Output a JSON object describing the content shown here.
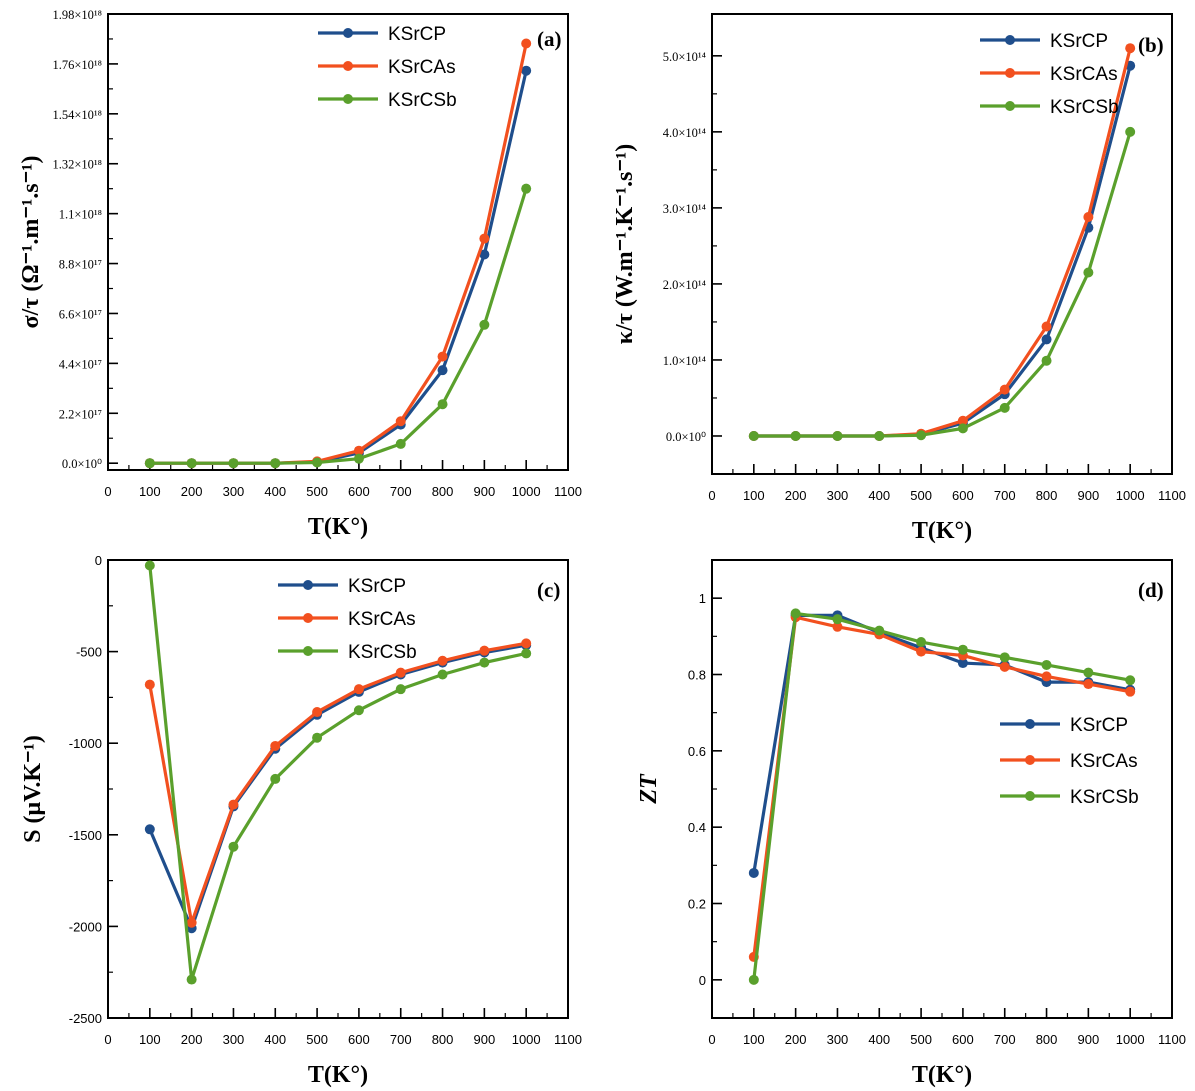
{
  "series_colors": {
    "KSrCP": "#1f4e8c",
    "KSrCAs": "#f2501f",
    "KSrCSb": "#5aa02c"
  },
  "chart_data": [
    {
      "type": "line",
      "panel": "(a)",
      "title": "",
      "xlabel": "T(K°)",
      "ylabel": "σ/τ (Ω⁻¹.m⁻¹.s⁻¹)",
      "xlim": [
        0,
        1100
      ],
      "ylim": [
        -3e+16,
        1.98e+18
      ],
      "x_ticks": [
        "0",
        "100",
        "200",
        "300",
        "400",
        "500",
        "600",
        "700",
        "800",
        "900",
        "1000",
        "1100"
      ],
      "y_ticks": [
        {
          "v": 0,
          "label": "0.0×10⁰"
        },
        {
          "v": 2.2e+17,
          "label": "2.2×10¹⁷"
        },
        {
          "v": 4.4e+17,
          "label": "4.4×10¹⁷"
        },
        {
          "v": 6.6e+17,
          "label": "6.6×10¹⁷"
        },
        {
          "v": 8.8e+17,
          "label": "8.8×10¹⁷"
        },
        {
          "v": 1.1e+18,
          "label": "1.1×10¹⁸"
        },
        {
          "v": 1.32e+18,
          "label": "1.32×10¹⁸"
        },
        {
          "v": 1.54e+18,
          "label": "1.54×10¹⁸"
        },
        {
          "v": 1.76e+18,
          "label": "1.76×10¹⁸"
        },
        {
          "v": 1.98e+18,
          "label": "1.98×10¹⁸"
        }
      ],
      "legend_position": "top-right",
      "x": [
        100,
        200,
        300,
        400,
        500,
        600,
        700,
        800,
        900,
        1000
      ],
      "series": [
        {
          "name": "KSrCP",
          "values": [
            0,
            0,
            0,
            0,
            5000000000000000.0,
            4.5e+16,
            1.7e+17,
            4.1e+17,
            9.2e+17,
            1.73e+18
          ]
        },
        {
          "name": "KSrCAs",
          "values": [
            0,
            0,
            0,
            0,
            8000000000000000.0,
            5.5e+16,
            1.85e+17,
            4.7e+17,
            9.9e+17,
            1.85e+18
          ]
        },
        {
          "name": "KSrCSb",
          "values": [
            0,
            0,
            0,
            0,
            3000000000000000.0,
            2e+16,
            8.5e+16,
            2.6e+17,
            6.1e+17,
            1.21e+18
          ]
        }
      ]
    },
    {
      "type": "line",
      "panel": "(b)",
      "title": "",
      "xlabel": "T(K°)",
      "ylabel": "κ/τ (W.m⁻¹.K⁻¹.s⁻¹)",
      "xlim": [
        0,
        1100
      ],
      "ylim": [
        -50000000000000.0,
        555000000000000.0
      ],
      "x_ticks": [
        "0",
        "100",
        "200",
        "300",
        "400",
        "500",
        "600",
        "700",
        "800",
        "900",
        "1000",
        "1100"
      ],
      "y_ticks": [
        {
          "v": 0,
          "label": "0.0×10⁰"
        },
        {
          "v": 100000000000000.0,
          "label": "1.0×10¹⁴"
        },
        {
          "v": 200000000000000.0,
          "label": "2.0×10¹⁴"
        },
        {
          "v": 300000000000000.0,
          "label": "3.0×10¹⁴"
        },
        {
          "v": 400000000000000.0,
          "label": "4.0×10¹⁴"
        },
        {
          "v": 500000000000000.0,
          "label": "5.0×10¹⁴"
        }
      ],
      "legend_position": "top-right",
      "x": [
        100,
        200,
        300,
        400,
        500,
        600,
        700,
        800,
        900,
        1000
      ],
      "series": [
        {
          "name": "KSrCP",
          "values": [
            0,
            0,
            0,
            0,
            2000000000000.0,
            17000000000000.0,
            55000000000000.0,
            127000000000000.0,
            274000000000000.0,
            487000000000000.0
          ]
        },
        {
          "name": "KSrCAs",
          "values": [
            0,
            0,
            0,
            0,
            3000000000000.0,
            20000000000000.0,
            61000000000000.0,
            144000000000000.0,
            288000000000000.0,
            510000000000000.0
          ]
        },
        {
          "name": "KSrCSb",
          "values": [
            0,
            0,
            0,
            0,
            1000000000000.0,
            10000000000000.0,
            37000000000000.0,
            99000000000000.0,
            215000000000000.0,
            400000000000000.0
          ]
        }
      ]
    },
    {
      "type": "line",
      "panel": "(c)",
      "title": "",
      "xlabel": "T(K°)",
      "ylabel": "S (μV.K⁻¹)",
      "xlim": [
        0,
        1100
      ],
      "ylim": [
        -2500,
        0
      ],
      "x_ticks": [
        "0",
        "100",
        "200",
        "300",
        "400",
        "500",
        "600",
        "700",
        "800",
        "900",
        "1000",
        "1100"
      ],
      "y_ticks": [
        {
          "v": 0,
          "label": "0"
        },
        {
          "v": -500,
          "label": "-500"
        },
        {
          "v": -1000,
          "label": "-1000"
        },
        {
          "v": -1500,
          "label": "-1500"
        },
        {
          "v": -2000,
          "label": "-2000"
        },
        {
          "v": -2500,
          "label": "-2500"
        }
      ],
      "legend_position": "top-right",
      "x": [
        100,
        200,
        300,
        400,
        500,
        600,
        700,
        800,
        900,
        1000
      ],
      "series": [
        {
          "name": "KSrCP",
          "values": [
            -1470,
            -2010,
            -1345,
            -1030,
            -845,
            -720,
            -625,
            -560,
            -505,
            -465
          ]
        },
        {
          "name": "KSrCAs",
          "values": [
            -680,
            -1980,
            -1335,
            -1015,
            -830,
            -705,
            -615,
            -550,
            -495,
            -455
          ]
        },
        {
          "name": "KSrCSb",
          "values": [
            -30,
            -2290,
            -1565,
            -1195,
            -970,
            -820,
            -705,
            -625,
            -560,
            -510
          ]
        }
      ]
    },
    {
      "type": "line",
      "panel": "(d)",
      "title": "",
      "xlabel": "T(K°)",
      "ylabel": "ZT",
      "xlim": [
        0,
        1100
      ],
      "ylim": [
        -0.1,
        1.1
      ],
      "x_ticks": [
        "0",
        "100",
        "200",
        "300",
        "400",
        "500",
        "600",
        "700",
        "800",
        "900",
        "1000",
        "1100"
      ],
      "y_ticks": [
        {
          "v": 0,
          "label": "0"
        },
        {
          "v": 0.2,
          "label": "0.2"
        },
        {
          "v": 0.4,
          "label": "0.4"
        },
        {
          "v": 0.6,
          "label": "0.6"
        },
        {
          "v": 0.8,
          "label": "0.8"
        },
        {
          "v": 1,
          "label": "1"
        }
      ],
      "legend_position": "center-right",
      "x": [
        100,
        200,
        300,
        400,
        500,
        600,
        700,
        800,
        900,
        1000
      ],
      "series": [
        {
          "name": "KSrCP",
          "values": [
            0.28,
            0.955,
            0.955,
            0.91,
            0.87,
            0.83,
            0.825,
            0.78,
            0.78,
            0.76
          ]
        },
        {
          "name": "KSrCAs",
          "values": [
            0.06,
            0.95,
            0.925,
            0.905,
            0.86,
            0.85,
            0.82,
            0.795,
            0.775,
            0.755
          ]
        },
        {
          "name": "KSrCSb",
          "values": [
            0.0,
            0.96,
            0.945,
            0.915,
            0.885,
            0.865,
            0.845,
            0.825,
            0.805,
            0.785
          ]
        }
      ]
    }
  ]
}
